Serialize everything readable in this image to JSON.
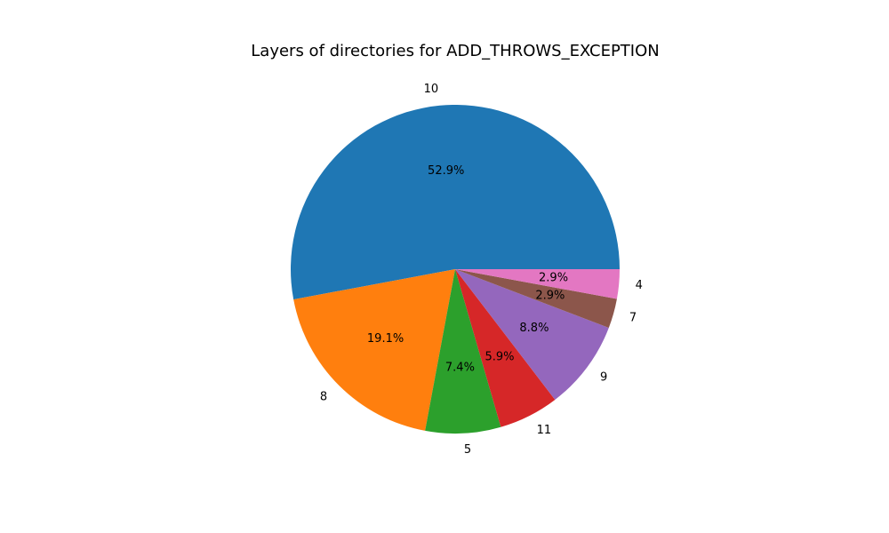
{
  "chart_data": {
    "type": "pie",
    "title": "Layers of directories for ADD_THROWS_EXCEPTION",
    "slices": [
      {
        "label": "10",
        "value": 52.9,
        "pct_label": "52.9%",
        "color": "#1f77b4"
      },
      {
        "label": "8",
        "value": 19.1,
        "pct_label": "19.1%",
        "color": "#ff7f0e"
      },
      {
        "label": "5",
        "value": 7.4,
        "pct_label": "7.4%",
        "color": "#2ca02c"
      },
      {
        "label": "11",
        "value": 5.9,
        "pct_label": "5.9%",
        "color": "#d62728"
      },
      {
        "label": "9",
        "value": 8.8,
        "pct_label": "8.8%",
        "color": "#9467bd"
      },
      {
        "label": "7",
        "value": 2.9,
        "pct_label": "2.9%",
        "color": "#8c564b"
      },
      {
        "label": "4",
        "value": 2.9,
        "pct_label": "2.9%",
        "color": "#e377c2"
      }
    ],
    "start_angle_deg": 0,
    "direction": "counterclockwise",
    "legend": "none"
  }
}
